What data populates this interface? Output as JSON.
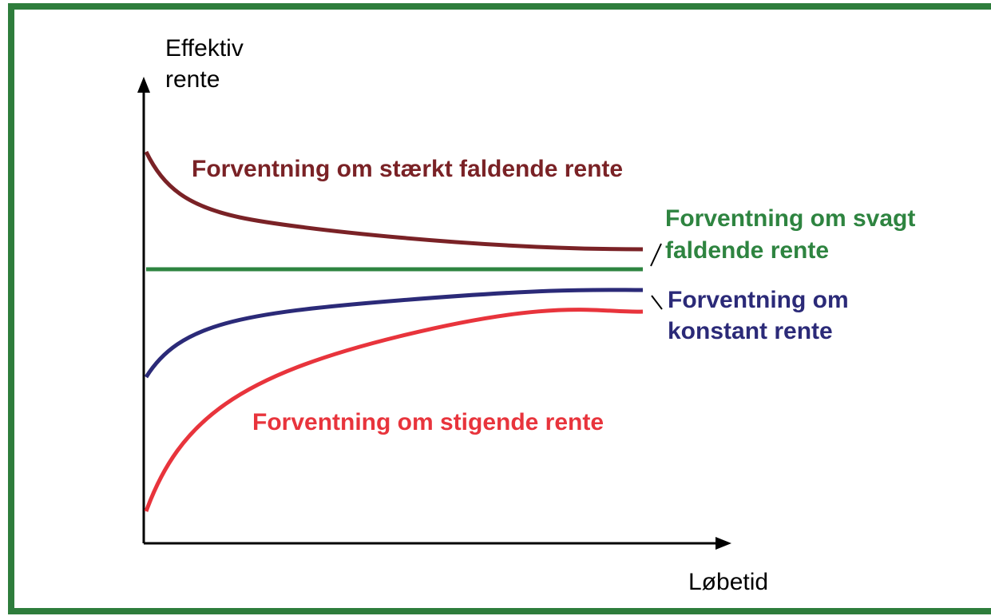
{
  "axes": {
    "y_label": [
      "Effektiv",
      "rente"
    ],
    "x_label": "Løbetid"
  },
  "curves": [
    {
      "label": [
        "Forventning om stærkt faldende rente"
      ],
      "color": "#7a2226"
    },
    {
      "label": [
        "Forventning om svagt",
        "faldende rente"
      ],
      "color": "#2e8440"
    },
    {
      "label": [
        "Forventning om",
        "konstant rente"
      ],
      "color": "#2b2a78"
    },
    {
      "label": [
        "Forventning om stigende rente"
      ],
      "color": "#e8343c"
    }
  ]
}
